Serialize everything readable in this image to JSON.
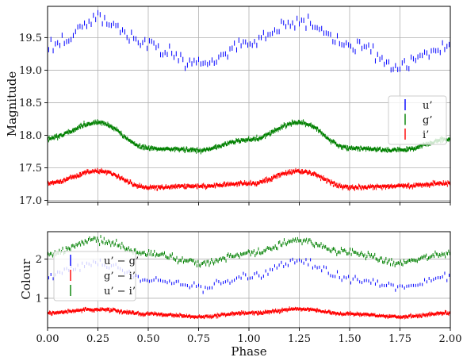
{
  "figure": {
    "background": "#ffffff",
    "shared_xlabel": "Phase"
  },
  "chart_data": [
    {
      "type": "scatter",
      "panel": "top",
      "title": "",
      "xlabel": "",
      "ylabel": "Magnitude",
      "xlim": [
        0.0,
        2.0
      ],
      "ylim": [
        19.98,
        16.97
      ],
      "y_inverted": true,
      "grid": true,
      "x_ticks": [
        0.0,
        0.25,
        0.5,
        0.75,
        1.0,
        1.25,
        1.5,
        1.75,
        2.0
      ],
      "x_tick_labels_shown": false,
      "y_ticks": [
        17.0,
        17.5,
        18.0,
        18.5,
        19.0,
        19.5
      ],
      "y_tick_labels": [
        "17.0",
        "17.5",
        "18.0",
        "18.5",
        "19.0",
        "19.5"
      ],
      "legend": {
        "placement": "right",
        "entries": [
          {
            "label": "u’",
            "color": "#0000ff"
          },
          {
            "label": "g’",
            "color": "#008000"
          },
          {
            "label": "i’",
            "color": "#ff0000"
          }
        ]
      },
      "series": [
        {
          "name": "u’",
          "color": "#0000ff",
          "points": 180,
          "mean": 19.41,
          "amplitude": 0.36,
          "phase_of_min_brightness": 0.25,
          "noise": 0.05,
          "error_bar": 0.04,
          "x": [
            0.0,
            0.25,
            0.5,
            0.75,
            1.0,
            1.25,
            1.5,
            1.75,
            2.0
          ],
          "y": [
            19.35,
            19.78,
            19.4,
            19.07,
            19.4,
            19.78,
            19.4,
            19.07,
            19.38
          ]
        },
        {
          "name": "g’",
          "color": "#008000",
          "points": 900,
          "mean": 18.0,
          "amplitude": 0.21,
          "phase_of_min_brightness": 0.25,
          "noise": 0.015,
          "error_bar": 0.02,
          "x": [
            0.0,
            0.25,
            0.5,
            0.75,
            1.0,
            1.25,
            1.5,
            1.75,
            2.0
          ],
          "y": [
            17.95,
            18.2,
            17.8,
            17.77,
            17.93,
            18.2,
            17.8,
            17.77,
            17.94
          ]
        },
        {
          "name": "i’",
          "color": "#ff0000",
          "points": 900,
          "mean": 17.32,
          "amplitude": 0.13,
          "phase_of_min_brightness": 0.25,
          "noise": 0.015,
          "error_bar": 0.02,
          "x": [
            0.0,
            0.25,
            0.5,
            0.75,
            1.0,
            1.25,
            1.5,
            1.75,
            2.0
          ],
          "y": [
            17.26,
            17.45,
            17.2,
            17.22,
            17.26,
            17.45,
            17.2,
            17.22,
            17.26
          ]
        }
      ]
    },
    {
      "type": "scatter",
      "panel": "bottom",
      "title": "",
      "xlabel": "Phase",
      "ylabel": "Colour",
      "xlim": [
        0.0,
        2.0
      ],
      "ylim": [
        2.7,
        0.25
      ],
      "y_inverted": true,
      "grid": true,
      "x_ticks": [
        0.0,
        0.25,
        0.5,
        0.75,
        1.0,
        1.25,
        1.5,
        1.75,
        2.0
      ],
      "x_tick_labels": [
        "0.00",
        "0.25",
        "0.50",
        "0.75",
        "1.00",
        "1.25",
        "1.50",
        "1.75",
        "2.00"
      ],
      "y_ticks": [
        1,
        2
      ],
      "y_tick_labels": [
        "1",
        "2"
      ],
      "legend": {
        "placement": "upper left",
        "entries": [
          {
            "label": "u’ − g’",
            "color": "#0000ff"
          },
          {
            "label": "g’ − i’",
            "color": "#ff0000"
          },
          {
            "label": "u’ − i’",
            "color": "#008000"
          }
        ]
      },
      "series": [
        {
          "name": "u’ − g’",
          "color": "#0000ff",
          "points": 180,
          "mean": 1.6,
          "amplitude": 0.28,
          "phase_of_min_brightness": 0.25,
          "noise": 0.05,
          "error_bar": 0.04,
          "x": [
            0.0,
            0.25,
            0.5,
            0.75,
            1.0,
            1.25,
            1.5,
            1.75,
            2.0
          ],
          "y": [
            1.55,
            1.92,
            1.5,
            1.3,
            1.55,
            1.92,
            1.5,
            1.3,
            1.55
          ]
        },
        {
          "name": "g’ − i’",
          "color": "#ff0000",
          "points": 900,
          "mean": 0.62,
          "amplitude": 0.09,
          "phase_of_min_brightness": 0.25,
          "noise": 0.02,
          "error_bar": 0.03,
          "x": [
            0.0,
            0.25,
            0.5,
            0.75,
            1.0,
            1.25,
            1.5,
            1.75,
            2.0
          ],
          "y": [
            0.62,
            0.72,
            0.6,
            0.53,
            0.62,
            0.72,
            0.6,
            0.53,
            0.62
          ]
        },
        {
          "name": "u’ − i’",
          "color": "#008000",
          "points": 360,
          "mean": 2.2,
          "amplitude": 0.28,
          "phase_of_min_brightness": 0.25,
          "noise": 0.04,
          "error_bar": 0.04,
          "x": [
            0.0,
            0.25,
            0.5,
            0.75,
            1.0,
            1.25,
            1.5,
            1.75,
            2.0
          ],
          "y": [
            2.15,
            2.48,
            2.15,
            1.9,
            2.15,
            2.48,
            2.15,
            1.9,
            2.15
          ]
        }
      ]
    }
  ]
}
